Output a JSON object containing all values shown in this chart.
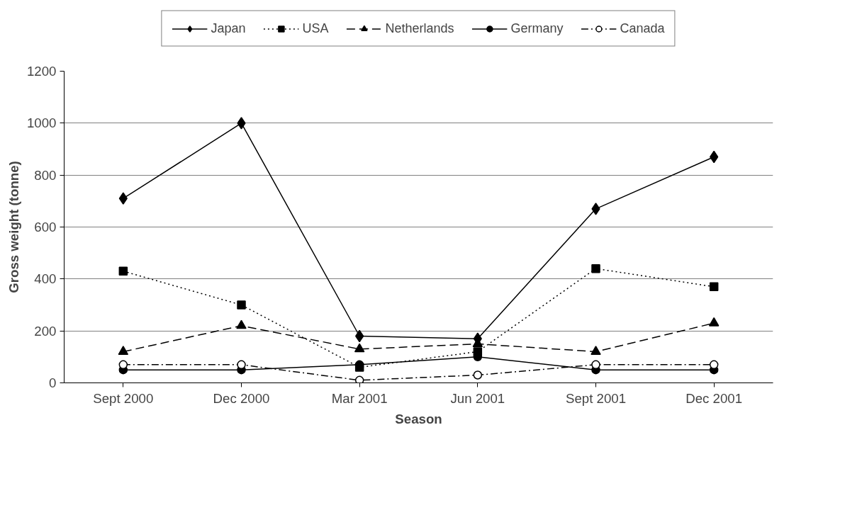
{
  "chart_data": {
    "type": "line",
    "xlabel": "Season",
    "ylabel": "Gross weight (tonne)",
    "categories": [
      "Sept 2000",
      "Dec 2000",
      "Mar 2001",
      "Jun 2001",
      "Sept 2001",
      "Dec 2001"
    ],
    "ylim": [
      0,
      1200
    ],
    "yticks": [
      0,
      200,
      400,
      600,
      800,
      1000,
      1200
    ],
    "grid": "y",
    "legend": "top",
    "series": [
      {
        "name": "Japan",
        "color": "#000000",
        "marker": "diamond",
        "line_style": "solid",
        "values": [
          710,
          1000,
          180,
          170,
          670,
          870
        ]
      },
      {
        "name": "USA",
        "color": "#000000",
        "marker": "square",
        "line_style": "dotted",
        "values": [
          430,
          300,
          60,
          120,
          440,
          370
        ]
      },
      {
        "name": "Netherlands",
        "color": "#000000",
        "marker": "triangle",
        "line_style": "dashed",
        "values": [
          120,
          220,
          130,
          150,
          120,
          230
        ]
      },
      {
        "name": "Germany",
        "color": "#000000",
        "marker": "circle",
        "line_style": "solid",
        "values": [
          50,
          50,
          70,
          100,
          50,
          50
        ]
      },
      {
        "name": "Canada",
        "color": "#000000",
        "marker": "circle_open",
        "line_style": "dashdot",
        "values": [
          70,
          70,
          10,
          30,
          70,
          70
        ]
      }
    ]
  }
}
